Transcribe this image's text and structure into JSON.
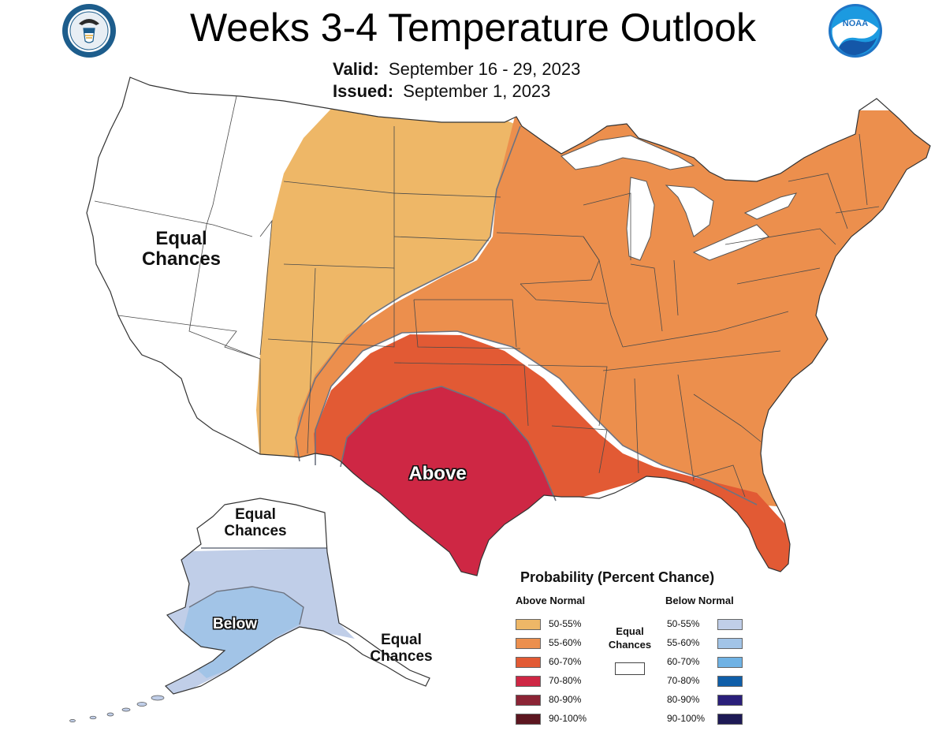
{
  "header": {
    "title": "Weeks 3-4 Temperature Outlook",
    "valid_label": "Valid:",
    "valid_value": "September 16 - 29, 2023",
    "issued_label": "Issued:",
    "issued_value": "September 1, 2023"
  },
  "logos": {
    "left": "department-of-commerce-seal",
    "right": "noaa-logo"
  },
  "map": {
    "labels": {
      "west": "Equal\nChances",
      "center": "Above",
      "alaska_north": "Equal\nChances",
      "alaska_south": "Below",
      "alaska_southeast": "Equal\nChances"
    },
    "colors": {
      "above_50_55": "#eeb767",
      "above_55_60": "#ec8f4d",
      "above_60_70": "#e25a34",
      "above_70_80": "#ce2744",
      "below_50_55": "#c0cee8",
      "below_55_60": "#a2c4e7",
      "outline": "#6d7380"
    }
  },
  "legend": {
    "title": "Probability (Percent Chance)",
    "above_header": "Above Normal",
    "below_header": "Below Normal",
    "equal_chances": "Equal\nChances",
    "above": [
      {
        "label": "50-55%",
        "color": "#eeb767"
      },
      {
        "label": "55-60%",
        "color": "#ec8f4d"
      },
      {
        "label": "60-70%",
        "color": "#e25a34"
      },
      {
        "label": "70-80%",
        "color": "#ce2744"
      },
      {
        "label": "80-90%",
        "color": "#8b2435"
      },
      {
        "label": "90-100%",
        "color": "#5c1620"
      }
    ],
    "below": [
      {
        "label": "50-55%",
        "color": "#c0cee8"
      },
      {
        "label": "55-60%",
        "color": "#a2c4e7"
      },
      {
        "label": "60-70%",
        "color": "#6fb2e4"
      },
      {
        "label": "70-80%",
        "color": "#0f5ea8"
      },
      {
        "label": "80-90%",
        "color": "#2a1f7a"
      },
      {
        "label": "90-100%",
        "color": "#1e1a55"
      }
    ]
  }
}
